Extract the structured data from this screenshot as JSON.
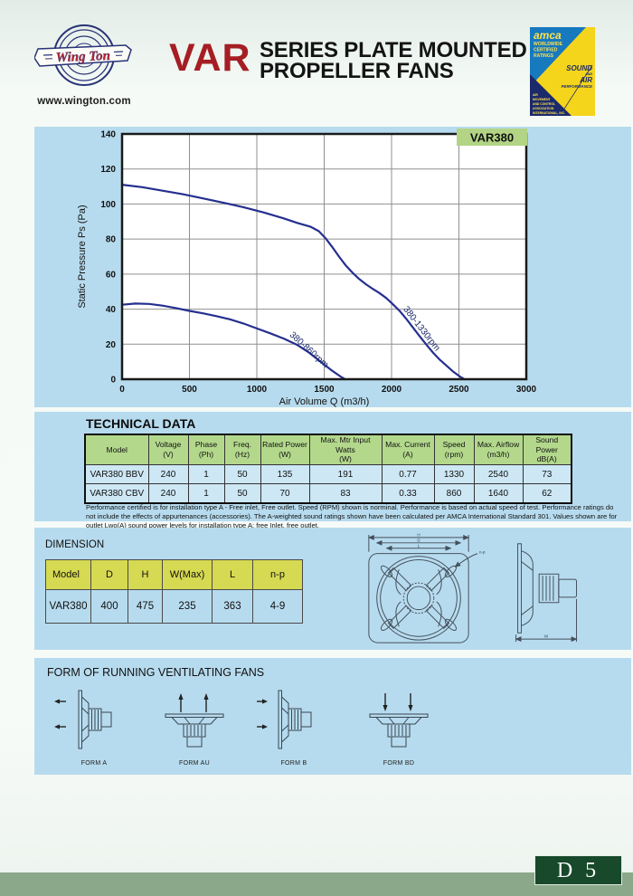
{
  "header": {
    "brand": "Wing Ton",
    "website": "www.wington.com",
    "series": "VAR",
    "title_line1": "SERIES PLATE MOUNTED",
    "title_line2": "PROPELLER FANS",
    "amca": {
      "name": "amca",
      "line2": "WORLDWIDE",
      "line3": "CERTIFIED",
      "line4": "RATINGS",
      "sound": "SOUND",
      "and": "AND",
      "air": "AIR",
      "performance": "PERFORMANCE",
      "assoc_lines": [
        "AIR",
        "MOVEMENT",
        "AND CONTROL",
        "ASSOCIATION",
        "INTERNATIONAL, INC."
      ]
    }
  },
  "chart_data": {
    "type": "line",
    "badge": "VAR380",
    "badge_bg": "#b2d484",
    "xlabel": "Air Volume Q (m3/h)",
    "ylabel": "Static Pressure Ps (Pa)",
    "xmin": 0,
    "xmax": 3000,
    "ymin": 0,
    "ymax": 140,
    "xticks": [
      0,
      500,
      1000,
      1500,
      2000,
      2500,
      3000
    ],
    "yticks": [
      0,
      20,
      40,
      60,
      80,
      100,
      120,
      140
    ],
    "grid": true,
    "curve_color": "#252f8f",
    "series": [
      {
        "name": "380-1330rpm",
        "label_at": [
          2085,
          40
        ],
        "label_rotate": 52,
        "points": [
          [
            0,
            111
          ],
          [
            150,
            109.6
          ],
          [
            300,
            107.6
          ],
          [
            450,
            105.6
          ],
          [
            600,
            103.2
          ],
          [
            750,
            100.8
          ],
          [
            900,
            98.2
          ],
          [
            1050,
            95.2
          ],
          [
            1200,
            91.8
          ],
          [
            1300,
            89.2
          ],
          [
            1400,
            87
          ],
          [
            1460,
            84.5
          ],
          [
            1510,
            80.5
          ],
          [
            1560,
            75.5
          ],
          [
            1610,
            70
          ],
          [
            1660,
            65
          ],
          [
            1710,
            60.8
          ],
          [
            1760,
            57.2
          ],
          [
            1810,
            54.2
          ],
          [
            1860,
            51.6
          ],
          [
            1910,
            49.2
          ],
          [
            1960,
            46.4
          ],
          [
            2010,
            42.8
          ],
          [
            2060,
            39
          ],
          [
            2110,
            34.4
          ],
          [
            2160,
            29.4
          ],
          [
            2210,
            24.4
          ],
          [
            2260,
            19.6
          ],
          [
            2310,
            15
          ],
          [
            2360,
            11
          ],
          [
            2410,
            7.6
          ],
          [
            2460,
            4.2
          ],
          [
            2510,
            1.4
          ],
          [
            2540,
            0
          ]
        ]
      },
      {
        "name": "380-860rpm",
        "label_at": [
          1240,
          25
        ],
        "label_rotate": 42,
        "points": [
          [
            0,
            42.5
          ],
          [
            100,
            43.2
          ],
          [
            200,
            43
          ],
          [
            300,
            42
          ],
          [
            400,
            40.6
          ],
          [
            500,
            39
          ],
          [
            600,
            37.6
          ],
          [
            700,
            36
          ],
          [
            800,
            34.2
          ],
          [
            900,
            31.8
          ],
          [
            1000,
            29
          ],
          [
            1100,
            26.2
          ],
          [
            1200,
            23.2
          ],
          [
            1300,
            19.6
          ],
          [
            1380,
            15.6
          ],
          [
            1440,
            12
          ],
          [
            1500,
            8.4
          ],
          [
            1560,
            4.8
          ],
          [
            1620,
            1.6
          ],
          [
            1655,
            0
          ]
        ]
      }
    ]
  },
  "technical": {
    "title": "TECHNICAL DATA",
    "headers": [
      {
        "l1": "Model",
        "l2": ""
      },
      {
        "l1": "Voltage",
        "l2": "(V)"
      },
      {
        "l1": "Phase",
        "l2": "(Ph)"
      },
      {
        "l1": "Freq.",
        "l2": "(Hz)"
      },
      {
        "l1": "Rated Power",
        "l2": "(W)"
      },
      {
        "l1": "Max. Mtr Input Watts",
        "l2": "(W)"
      },
      {
        "l1": "Max. Current",
        "l2": "(A)"
      },
      {
        "l1": "Speed",
        "l2": "(rpm)"
      },
      {
        "l1": "Max. Airflow",
        "l2": "(m3/h)"
      },
      {
        "l1": "Sound Power",
        "l2": "dB(A)"
      }
    ],
    "rows": [
      [
        "VAR380 BBV",
        "240",
        "1",
        "50",
        "135",
        "191",
        "0.77",
        "1330",
        "2540",
        "73"
      ],
      [
        "VAR380 CBV",
        "240",
        "1",
        "50",
        "70",
        "83",
        "0.33",
        "860",
        "1640",
        "62"
      ]
    ],
    "footnote": "Performance certified is for installation type A - Free inlet, Free outlet. Speed (RPM) shown is norminal. Performance is based on actual speed of test. Performance ratings do not include the effects of appurtenances (accessories). The A-weighted sound ratings shown have been calculated per AMCA International Standard 301. Values shown are for outlet Lwo(A) sound power levels for installation type A: free Inlet, free outlet."
  },
  "dimension": {
    "title": "DIMENSION",
    "headers": [
      "Model",
      "D",
      "H",
      "W(Max)",
      "L",
      "n-p"
    ],
    "rows": [
      [
        "VAR380",
        "400",
        "475",
        "235",
        "363",
        "4-9"
      ]
    ],
    "drawing_labels": {
      "h": "H",
      "d": "D",
      "l": "L",
      "w": "W",
      "np": "n-p"
    }
  },
  "forms": {
    "title": "FORM OF RUNNING VENTILATING FANS",
    "items": [
      {
        "label": "FORM A"
      },
      {
        "label": "FORM AU"
      },
      {
        "label": "FORM B"
      },
      {
        "label": "FORM BD"
      }
    ]
  },
  "footer": {
    "page": "D 5"
  }
}
